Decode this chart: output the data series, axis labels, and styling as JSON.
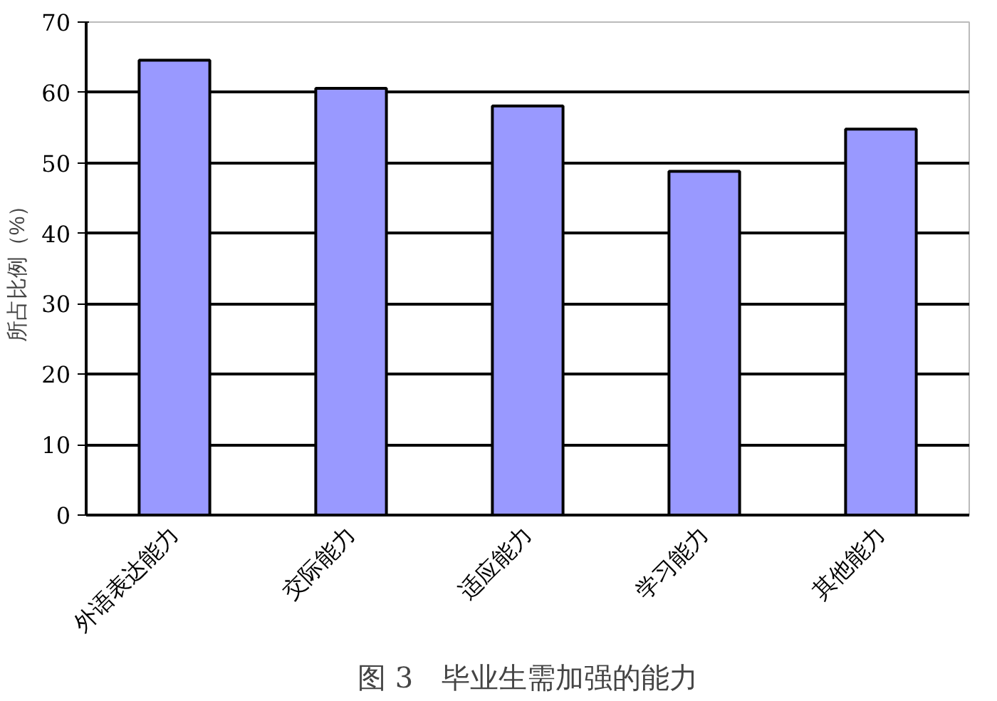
{
  "chart_data": {
    "type": "bar",
    "title": "图 3　毕业生需加强的能力",
    "ylabel": "所占比例（%）",
    "categories": [
      "外语表达能力",
      "交际能力",
      "适应能力",
      "学习能力",
      "其他能力"
    ],
    "values": [
      64.6,
      60.6,
      58.1,
      48.8,
      54.8
    ],
    "color": "#9999ff",
    "ylim": [
      0,
      70
    ],
    "yticks": [
      0,
      10,
      20,
      30,
      40,
      50,
      60,
      70
    ],
    "grid": "y"
  }
}
